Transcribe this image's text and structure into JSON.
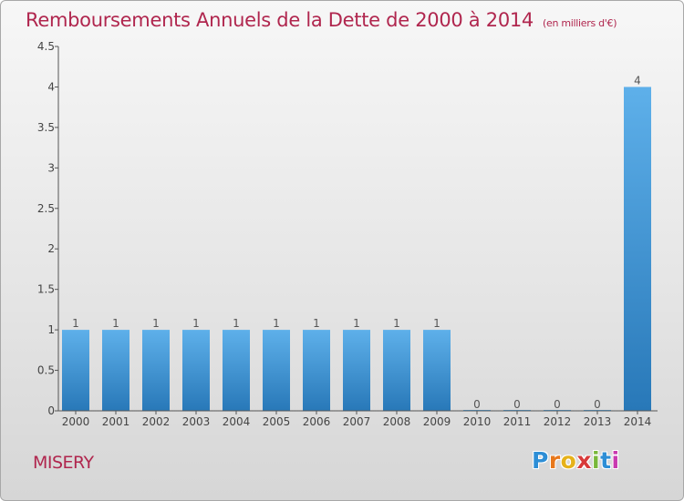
{
  "title": "Remboursements Annuels de la Dette de 2000 à 2014",
  "unit_note": "(en milliers d'€)",
  "commune": "MISERY",
  "logo": {
    "letters": [
      "P",
      "r",
      "o",
      "x",
      "i",
      "t",
      "i"
    ],
    "colors": [
      "#2d8ed6",
      "#e8781c",
      "#e6b21a",
      "#d83a3a",
      "#79b83a",
      "#2d8ed6",
      "#c93ab0"
    ]
  },
  "colors": {
    "title": "#b0264e",
    "bar_light": "#5eb0ea",
    "bar_dark": "#2878b8",
    "axis": "#555555"
  },
  "chart_data": {
    "type": "bar",
    "categories": [
      "2000",
      "2001",
      "2002",
      "2003",
      "2004",
      "2005",
      "2006",
      "2007",
      "2008",
      "2009",
      "2010",
      "2011",
      "2012",
      "2013",
      "2014"
    ],
    "values": [
      1,
      1,
      1,
      1,
      1,
      1,
      1,
      1,
      1,
      1,
      0,
      0,
      0,
      0,
      4
    ],
    "value_labels": [
      "1",
      "1",
      "1",
      "1",
      "1",
      "1",
      "1",
      "1",
      "1",
      "1",
      "0",
      "0",
      "0",
      "0",
      "4"
    ],
    "ylim": [
      0,
      4.5
    ],
    "yticks": [
      0,
      0.5,
      1,
      1.5,
      2,
      2.5,
      3,
      3.5,
      4,
      4.5
    ],
    "ytick_labels": [
      "0",
      "0.5",
      "1",
      "1.5",
      "2",
      "2.5",
      "3",
      "3.5",
      "4",
      "4.5"
    ],
    "grid": false,
    "legend": "none"
  }
}
